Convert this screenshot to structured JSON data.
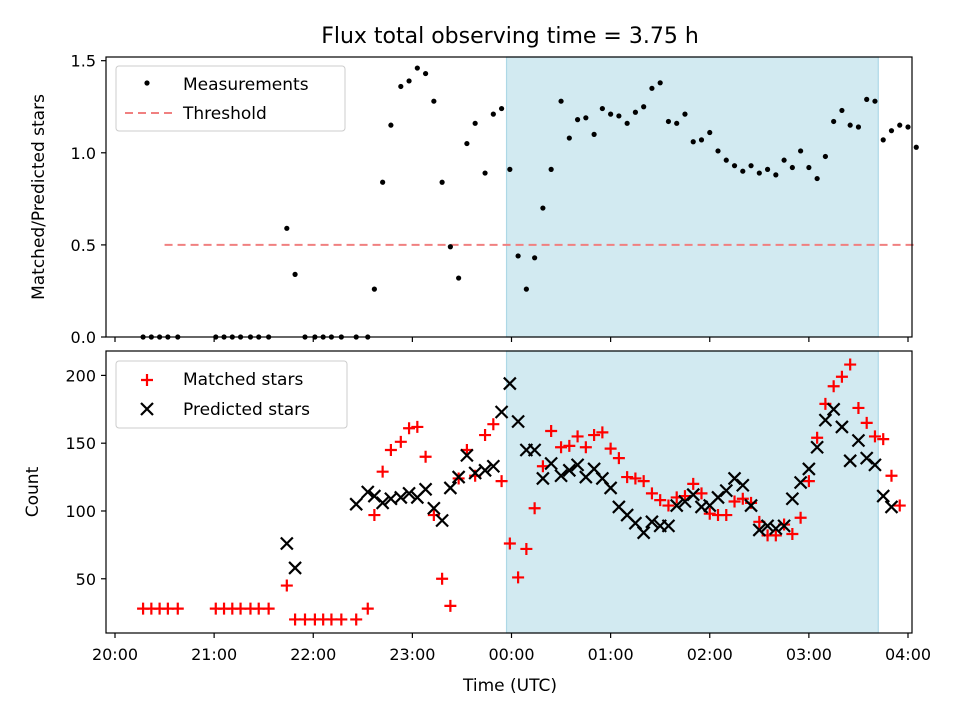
{
  "chart_data": [
    {
      "type": "scatter",
      "title": "Flux total observing time = 3.75 h",
      "xlabel": "",
      "ylabel": "Matched/Predicted stars",
      "xlim": [
        "20:00",
        "04:00"
      ],
      "ylim": [
        0,
        1.52
      ],
      "yticks": [
        "0.0",
        "0.5",
        "1.0",
        "1.5"
      ],
      "grid": false,
      "legend_position": "upper-left",
      "shaded_interval": [
        "23:57",
        "03:42"
      ],
      "shade_color": "#add8e6",
      "series": [
        {
          "name": "Measurements",
          "marker": "dot",
          "color": "#000000",
          "points": [
            [
              "20:17",
              0
            ],
            [
              "20:22",
              0
            ],
            [
              "20:27",
              0
            ],
            [
              "20:32",
              0
            ],
            [
              "20:38",
              0
            ],
            [
              "21:01",
              0
            ],
            [
              "21:06",
              0
            ],
            [
              "21:11",
              0
            ],
            [
              "21:16",
              0
            ],
            [
              "21:22",
              0
            ],
            [
              "21:27",
              0
            ],
            [
              "21:33",
              0
            ],
            [
              "21:44",
              0.59
            ],
            [
              "21:49",
              0.34
            ],
            [
              "21:55",
              0
            ],
            [
              "22:01",
              0
            ],
            [
              "22:06",
              0
            ],
            [
              "22:11",
              0
            ],
            [
              "22:17",
              0
            ],
            [
              "22:26",
              0
            ],
            [
              "22:33",
              0
            ],
            [
              "22:37",
              0.26
            ],
            [
              "22:42",
              0.84
            ],
            [
              "22:47",
              1.15
            ],
            [
              "22:53",
              1.36
            ],
            [
              "22:58",
              1.39
            ],
            [
              "23:03",
              1.46
            ],
            [
              "23:08",
              1.43
            ],
            [
              "23:13",
              1.28
            ],
            [
              "23:18",
              0.84
            ],
            [
              "23:23",
              0.49
            ],
            [
              "23:28",
              0.32
            ],
            [
              "23:33",
              1.05
            ],
            [
              "23:38",
              1.16
            ],
            [
              "23:44",
              0.89
            ],
            [
              "23:49",
              1.21
            ],
            [
              "23:54",
              1.24
            ],
            [
              "23:59",
              0.91
            ],
            [
              "00:04",
              0.44
            ],
            [
              "00:09",
              0.26
            ],
            [
              "00:14",
              0.43
            ],
            [
              "00:19",
              0.7
            ],
            [
              "00:24",
              0.91
            ],
            [
              "00:30",
              1.28
            ],
            [
              "00:35",
              1.08
            ],
            [
              "00:40",
              1.18
            ],
            [
              "00:45",
              1.19
            ],
            [
              "00:50",
              1.1
            ],
            [
              "00:55",
              1.24
            ],
            [
              "01:00",
              1.21
            ],
            [
              "01:05",
              1.2
            ],
            [
              "01:10",
              1.16
            ],
            [
              "01:15",
              1.22
            ],
            [
              "01:20",
              1.25
            ],
            [
              "01:25",
              1.35
            ],
            [
              "01:30",
              1.38
            ],
            [
              "01:35",
              1.17
            ],
            [
              "01:40",
              1.16
            ],
            [
              "01:45",
              1.21
            ],
            [
              "01:50",
              1.06
            ],
            [
              "01:55",
              1.07
            ],
            [
              "02:00",
              1.11
            ],
            [
              "02:05",
              1.01
            ],
            [
              "02:10",
              0.96
            ],
            [
              "02:15",
              0.93
            ],
            [
              "02:20",
              0.9
            ],
            [
              "02:25",
              0.93
            ],
            [
              "02:30",
              0.89
            ],
            [
              "02:35",
              0.91
            ],
            [
              "02:40",
              0.88
            ],
            [
              "02:45",
              0.96
            ],
            [
              "02:50",
              0.92
            ],
            [
              "02:55",
              1.01
            ],
            [
              "03:00",
              0.92
            ],
            [
              "03:05",
              0.86
            ],
            [
              "03:10",
              0.98
            ],
            [
              "03:15",
              1.17
            ],
            [
              "03:20",
              1.23
            ],
            [
              "03:25",
              1.15
            ],
            [
              "03:30",
              1.14
            ],
            [
              "03:35",
              1.29
            ],
            [
              "03:40",
              1.28
            ],
            [
              "03:45",
              1.07
            ],
            [
              "03:50",
              1.12
            ],
            [
              "03:55",
              1.15
            ],
            [
              "04:00",
              1.14
            ],
            [
              "04:05",
              1.03
            ]
          ]
        },
        {
          "name": "Threshold",
          "marker": "dashed-line",
          "color": "#f08080",
          "points": [
            [
              "20:30",
              0.5
            ],
            [
              "04:05",
              0.5
            ]
          ]
        }
      ]
    },
    {
      "type": "scatter",
      "title": "",
      "xlabel": "Time (UTC)",
      "ylabel": "Count",
      "xlim": [
        "20:00",
        "04:00"
      ],
      "ylim": [
        10,
        218
      ],
      "xticks": [
        "20:00",
        "21:00",
        "22:00",
        "23:00",
        "00:00",
        "01:00",
        "02:00",
        "03:00",
        "04:00"
      ],
      "yticks": [
        "50",
        "100",
        "150",
        "200"
      ],
      "grid": false,
      "legend_position": "upper-left",
      "shaded_interval": [
        "23:57",
        "03:42"
      ],
      "shade_color": "#add8e6",
      "series": [
        {
          "name": "Matched stars",
          "marker": "plus",
          "color": "#ff0000",
          "points": [
            [
              "20:17",
              28
            ],
            [
              "20:22",
              28
            ],
            [
              "20:27",
              28
            ],
            [
              "20:32",
              28
            ],
            [
              "20:38",
              28
            ],
            [
              "21:01",
              28
            ],
            [
              "21:06",
              28
            ],
            [
              "21:11",
              28
            ],
            [
              "21:16",
              28
            ],
            [
              "21:22",
              28
            ],
            [
              "21:27",
              28
            ],
            [
              "21:33",
              28
            ],
            [
              "21:44",
              45
            ],
            [
              "21:49",
              20
            ],
            [
              "21:55",
              20
            ],
            [
              "22:01",
              20
            ],
            [
              "22:06",
              20
            ],
            [
              "22:11",
              20
            ],
            [
              "22:17",
              20
            ],
            [
              "22:26",
              20
            ],
            [
              "22:33",
              28
            ],
            [
              "22:37",
              97
            ],
            [
              "22:42",
              129
            ],
            [
              "22:47",
              145
            ],
            [
              "22:53",
              151
            ],
            [
              "22:58",
              161
            ],
            [
              "23:03",
              162
            ],
            [
              "23:08",
              140
            ],
            [
              "23:13",
              97
            ],
            [
              "23:18",
              50
            ],
            [
              "23:23",
              30
            ],
            [
              "23:28",
              124
            ],
            [
              "23:33",
              145
            ],
            [
              "23:38",
              126
            ],
            [
              "23:44",
              156
            ],
            [
              "23:49",
              164
            ],
            [
              "23:54",
              122
            ],
            [
              "23:59",
              76
            ],
            [
              "00:04",
              51
            ],
            [
              "00:09",
              72
            ],
            [
              "00:14",
              102
            ],
            [
              "00:19",
              133
            ],
            [
              "00:24",
              159
            ],
            [
              "00:30",
              147
            ],
            [
              "00:35",
              148
            ],
            [
              "00:40",
              155
            ],
            [
              "00:45",
              147
            ],
            [
              "00:50",
              156
            ],
            [
              "00:55",
              158
            ],
            [
              "01:00",
              146
            ],
            [
              "01:05",
              139
            ],
            [
              "01:10",
              125
            ],
            [
              "01:15",
              124
            ],
            [
              "01:20",
              122
            ],
            [
              "01:25",
              113
            ],
            [
              "01:30",
              108
            ],
            [
              "01:35",
              104
            ],
            [
              "01:40",
              110
            ],
            [
              "01:45",
              111
            ],
            [
              "01:50",
              120
            ],
            [
              "01:55",
              113
            ],
            [
              "02:00",
              98
            ],
            [
              "02:05",
              97
            ],
            [
              "02:10",
              97
            ],
            [
              "02:15",
              107
            ],
            [
              "02:20",
              109
            ],
            [
              "02:25",
              106
            ],
            [
              "02:30",
              92
            ],
            [
              "02:35",
              82
            ],
            [
              "02:40",
              82
            ],
            [
              "02:45",
              90
            ],
            [
              "02:50",
              83
            ],
            [
              "02:55",
              95
            ],
            [
              "03:00",
              122
            ],
            [
              "03:05",
              154
            ],
            [
              "03:10",
              179
            ],
            [
              "03:15",
              192
            ],
            [
              "03:20",
              199
            ],
            [
              "03:25",
              208
            ],
            [
              "03:30",
              176
            ],
            [
              "03:35",
              165
            ],
            [
              "03:40",
              155
            ],
            [
              "03:45",
              153
            ],
            [
              "03:50",
              126
            ],
            [
              "03:55",
              104
            ]
          ]
        },
        {
          "name": "Predicted stars",
          "marker": "x",
          "color": "#000000",
          "points": [
            [
              "21:44",
              76
            ],
            [
              "21:49",
              58
            ],
            [
              "22:26",
              105
            ],
            [
              "22:33",
              114
            ],
            [
              "22:37",
              111
            ],
            [
              "22:42",
              106
            ],
            [
              "22:47",
              109
            ],
            [
              "22:53",
              110
            ],
            [
              "22:58",
              113
            ],
            [
              "23:03",
              110
            ],
            [
              "23:08",
              116
            ],
            [
              "23:13",
              102
            ],
            [
              "23:18",
              93
            ],
            [
              "23:23",
              117
            ],
            [
              "23:28",
              125
            ],
            [
              "23:33",
              141
            ],
            [
              "23:38",
              128
            ],
            [
              "23:44",
              130
            ],
            [
              "23:49",
              133
            ],
            [
              "23:54",
              173
            ],
            [
              "23:59",
              194
            ],
            [
              "00:04",
              166
            ],
            [
              "00:09",
              145
            ],
            [
              "00:14",
              145
            ],
            [
              "00:19",
              124
            ],
            [
              "00:24",
              135
            ],
            [
              "00:30",
              126
            ],
            [
              "00:35",
              130
            ],
            [
              "00:40",
              134
            ],
            [
              "00:45",
              125
            ],
            [
              "00:50",
              131
            ],
            [
              "00:55",
              124
            ],
            [
              "01:00",
              117
            ],
            [
              "01:05",
              103
            ],
            [
              "01:10",
              97
            ],
            [
              "01:15",
              91
            ],
            [
              "01:20",
              84
            ],
            [
              "01:25",
              92
            ],
            [
              "01:30",
              89
            ],
            [
              "01:35",
              89
            ],
            [
              "01:40",
              104
            ],
            [
              "01:45",
              107
            ],
            [
              "01:50",
              112
            ],
            [
              "01:55",
              103
            ],
            [
              "02:00",
              104
            ],
            [
              "02:05",
              110
            ],
            [
              "02:10",
              115
            ],
            [
              "02:15",
              124
            ],
            [
              "02:20",
              119
            ],
            [
              "02:25",
              104
            ],
            [
              "02:30",
              86
            ],
            [
              "02:35",
              89
            ],
            [
              "02:40",
              87
            ],
            [
              "02:45",
              89
            ],
            [
              "02:50",
              109
            ],
            [
              "02:55",
              121
            ],
            [
              "03:00",
              131
            ],
            [
              "03:05",
              147
            ],
            [
              "03:10",
              167
            ],
            [
              "03:15",
              175
            ],
            [
              "03:20",
              162
            ],
            [
              "03:25",
              137
            ],
            [
              "03:30",
              152
            ],
            [
              "03:35",
              139
            ],
            [
              "03:40",
              134
            ],
            [
              "03:45",
              111
            ],
            [
              "03:50",
              103
            ]
          ]
        }
      ]
    }
  ]
}
